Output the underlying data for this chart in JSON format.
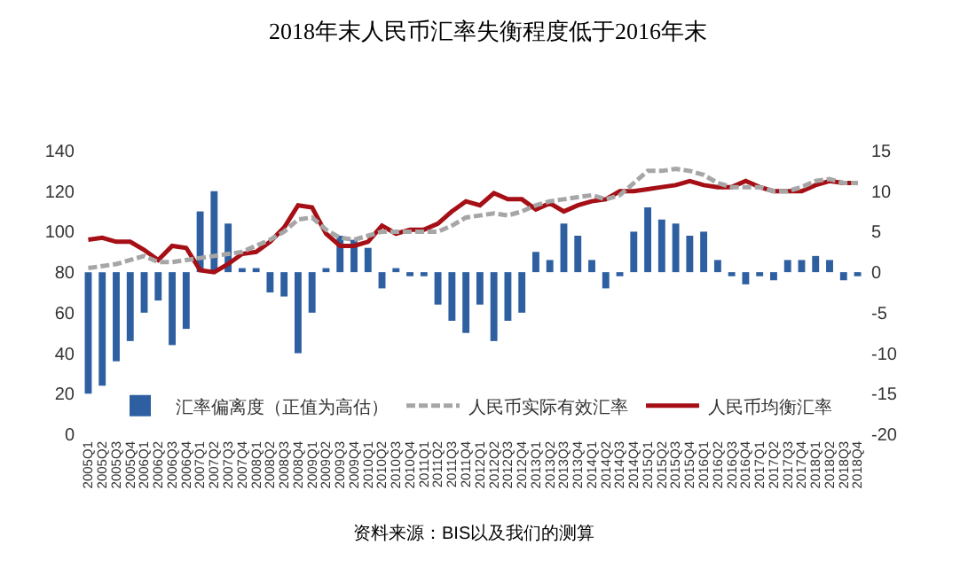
{
  "chart_data": {
    "type": "bar",
    "title": "2018年末人民币汇率失衡程度低于2016年末",
    "categories": [
      "2005Q1",
      "2005Q2",
      "2005Q3",
      "2005Q4",
      "2006Q1",
      "2006Q2",
      "2006Q3",
      "2006Q4",
      "2007Q1",
      "2007Q2",
      "2007Q3",
      "2007Q4",
      "2008Q1",
      "2008Q2",
      "2008Q3",
      "2008Q4",
      "2009Q1",
      "2009Q2",
      "2009Q3",
      "2009Q4",
      "2010Q1",
      "2010Q2",
      "2010Q3",
      "2010Q4",
      "2011Q1",
      "2011Q2",
      "2011Q3",
      "2011Q4",
      "2012Q1",
      "2012Q2",
      "2012Q3",
      "2012Q4",
      "2013Q1",
      "2013Q2",
      "2013Q3",
      "2013Q4",
      "2014Q1",
      "2014Q2",
      "2014Q3",
      "2014Q4",
      "2015Q1",
      "2015Q2",
      "2015Q3",
      "2015Q4",
      "2016Q1",
      "2016Q2",
      "2016Q3",
      "2016Q4",
      "2017Q1",
      "2017Q2",
      "2017Q3",
      "2017Q4",
      "2018Q1",
      "2018Q2",
      "2018Q3",
      "2018Q4"
    ],
    "series": [
      {
        "name": "汇率偏离度（正值为高估）",
        "axis": "y2",
        "color": "#2e5fa1",
        "values": [
          -15,
          -14,
          -11,
          -8.5,
          -5,
          -3.5,
          -9,
          -7,
          7.5,
          10,
          6,
          0.5,
          0.5,
          -2.5,
          -3,
          -10,
          -5,
          0.5,
          4.5,
          4,
          3,
          -2,
          0.5,
          -0.5,
          -0.5,
          -4,
          -6,
          -7.5,
          -4,
          -8.5,
          -6,
          -5,
          2.5,
          1.5,
          6,
          4.5,
          1.5,
          -2,
          -0.5,
          5,
          8,
          6.5,
          6,
          4.5,
          5,
          1.5,
          -0.5,
          -1.5,
          -0.5,
          -1,
          1.5,
          1.5,
          2,
          1.5,
          -1,
          -0.5
        ]
      },
      {
        "name": "人民币实际有效汇率",
        "type": "line",
        "axis": "y",
        "color": "#a6a6a6",
        "line_style": "dashed",
        "values": [
          82,
          83,
          84,
          86,
          88,
          85,
          85,
          86,
          87,
          88,
          89,
          90,
          93,
          96,
          100,
          106,
          107,
          101,
          97,
          96,
          98,
          100,
          100,
          100,
          100,
          100,
          103,
          107,
          108,
          109,
          108,
          110,
          113,
          115,
          116,
          117,
          118,
          116,
          118,
          124,
          130,
          130,
          131,
          130,
          128,
          124,
          122,
          122,
          122,
          120,
          120,
          122,
          125,
          126,
          124,
          124
        ]
      },
      {
        "name": "人民币均衡汇率",
        "type": "line",
        "axis": "y",
        "color": "#a50f15",
        "line_style": "solid",
        "values": [
          96,
          97,
          95,
          95,
          91,
          86,
          93,
          92,
          81,
          80,
          84,
          89,
          90,
          95,
          102,
          113,
          112,
          99,
          93,
          93,
          95,
          103,
          99,
          101,
          101,
          104,
          110,
          115,
          113,
          119,
          116,
          116,
          111,
          114,
          110,
          113,
          115,
          116,
          120,
          120,
          121,
          122,
          123,
          125,
          123,
          122,
          122,
          125,
          122,
          120,
          120,
          120,
          123,
          125,
          124,
          124
        ]
      }
    ],
    "ylim": [
      0,
      140
    ],
    "yticks": [
      0,
      20,
      40,
      60,
      80,
      100,
      120,
      140
    ],
    "y2lim": [
      -20,
      15
    ],
    "y2ticks": [
      -20,
      -15,
      -10,
      -5,
      0,
      5,
      10,
      15
    ],
    "grid": false,
    "legend": "bottom",
    "annotations": [
      "资料来源：BIS以及我们的测算"
    ]
  }
}
